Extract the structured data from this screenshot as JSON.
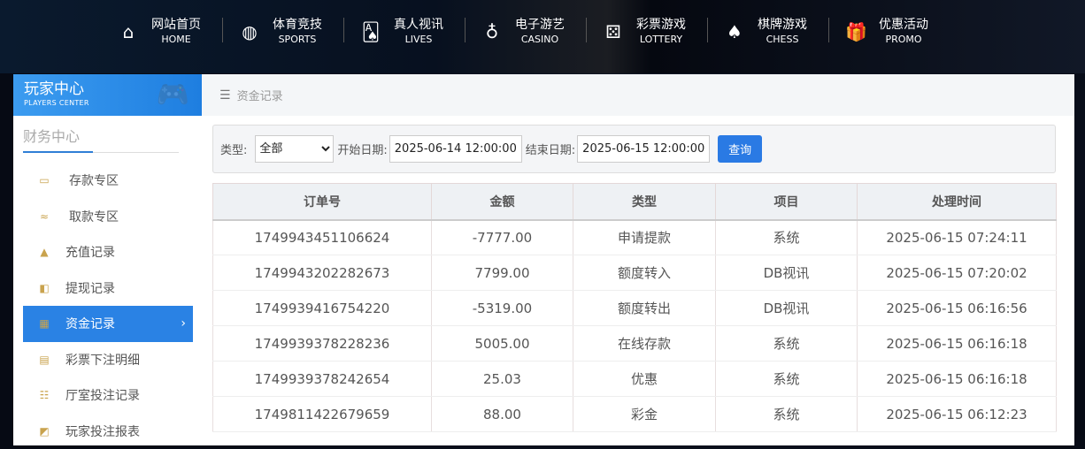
{
  "nav": [
    {
      "cn": "网站首页",
      "en": "HOME",
      "icon": "home-icon",
      "glyph": "⌂"
    },
    {
      "cn": "体育竞技",
      "en": "SPORTS",
      "icon": "ball-icon",
      "glyph": "◍"
    },
    {
      "cn": "真人视讯",
      "en": "LIVES",
      "icon": "cards-icon",
      "glyph": "🂡"
    },
    {
      "cn": "电子游艺",
      "en": "CASINO",
      "icon": "roulette-icon",
      "glyph": "♁"
    },
    {
      "cn": "彩票游戏",
      "en": "LOTTERY",
      "icon": "dice-icon",
      "glyph": "⚄"
    },
    {
      "cn": "棋牌游戏",
      "en": "CHESS",
      "icon": "spade-icon",
      "glyph": "♠"
    },
    {
      "cn": "优惠活动",
      "en": "PROMO",
      "icon": "gift-icon",
      "glyph": "🎁"
    }
  ],
  "sidebar": {
    "title_cn": "玩家中心",
    "title_en": "PLAYERS CENTER",
    "section": "财务中心",
    "items": [
      {
        "label": "存款专区",
        "icon": "deposit-card-icon",
        "glyph": "▭"
      },
      {
        "label": "取款专区",
        "icon": "withdraw-hand-icon",
        "glyph": "≈"
      },
      {
        "label": "充值记录",
        "icon": "money-bag-icon",
        "glyph": "▲"
      },
      {
        "label": "提现记录",
        "icon": "wallet-icon",
        "glyph": "◧"
      },
      {
        "label": "资金记录",
        "icon": "funds-icon",
        "glyph": "▦",
        "active": true
      },
      {
        "label": "彩票下注明细",
        "icon": "ticket-icon",
        "glyph": "▤"
      },
      {
        "label": "厅室投注记录",
        "icon": "list-icon",
        "glyph": "☷"
      },
      {
        "label": "玩家投注报表",
        "icon": "chart-icon",
        "glyph": "◩"
      }
    ]
  },
  "breadcrumb": "资金记录",
  "filter": {
    "type_label": "类型:",
    "type_value": "全部",
    "start_label": "开始日期:",
    "start_value": "2025-06-14 12:00:00",
    "end_label": "结束日期:",
    "end_value": "2025-06-15 12:00:00",
    "query": "查询"
  },
  "table": {
    "headers": [
      "订单号",
      "金额",
      "类型",
      "项目",
      "处理时间"
    ],
    "rows": [
      [
        "1749943451106624",
        "-7777.00",
        "申请提款",
        "系统",
        "2025-06-15 07:24:11"
      ],
      [
        "1749943202282673",
        "7799.00",
        "额度转入",
        "DB视讯",
        "2025-06-15 07:20:02"
      ],
      [
        "1749939416754220",
        "-5319.00",
        "额度转出",
        "DB视讯",
        "2025-06-15 06:16:56"
      ],
      [
        "1749939378228236",
        "5005.00",
        "在线存款",
        "系统",
        "2025-06-15 06:16:18"
      ],
      [
        "1749939378242654",
        "25.03",
        "优惠",
        "系统",
        "2025-06-15 06:16:18"
      ],
      [
        "1749811422679659",
        "88.00",
        "彩金",
        "系统",
        "2025-06-15 06:12:23"
      ]
    ]
  }
}
